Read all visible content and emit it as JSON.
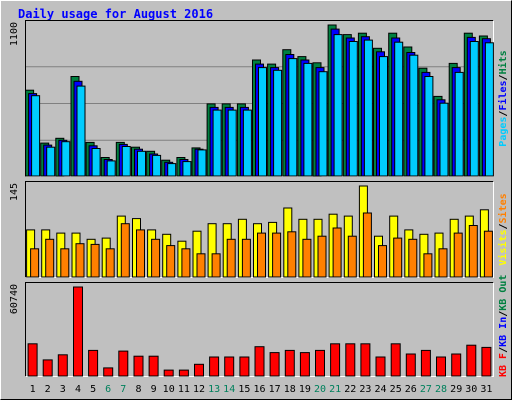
{
  "chart_data": [
    {
      "type": "bar",
      "title": "Daily usage for August 2016",
      "ylim": [
        0,
        1100
      ],
      "y_tick_label": "1100",
      "legend": [
        {
          "text": "Pages",
          "color": "#00ccff"
        },
        {
          "text": "Files",
          "color": "#0000ff"
        },
        {
          "text": "Hits",
          "color": "#008040"
        }
      ],
      "categories": [
        "1",
        "2",
        "3",
        "4",
        "5",
        "6",
        "7",
        "8",
        "9",
        "10",
        "11",
        "12",
        "13",
        "14",
        "15",
        "16",
        "17",
        "18",
        "19",
        "20",
        "21",
        "22",
        "23",
        "24",
        "25",
        "26",
        "27",
        "28",
        "29",
        "30",
        "31"
      ],
      "weekend_days": [
        "6",
        "7",
        "13",
        "14",
        "20",
        "21",
        "27",
        "28"
      ],
      "series": [
        {
          "name": "Hits",
          "color": "#008040",
          "values": [
            625,
            240,
            275,
            725,
            245,
            135,
            245,
            210,
            180,
            115,
            135,
            205,
            525,
            525,
            525,
            845,
            815,
            920,
            870,
            825,
            1100,
            1030,
            1040,
            930,
            1040,
            940,
            785,
            580,
            820,
            1040,
            1020
          ]
        },
        {
          "name": "Files",
          "color": "#0000ff",
          "values": [
            600,
            225,
            260,
            690,
            220,
            120,
            230,
            195,
            160,
            100,
            120,
            195,
            500,
            500,
            500,
            815,
            790,
            885,
            845,
            790,
            1070,
            1005,
            1015,
            905,
            1005,
            900,
            755,
            555,
            790,
            1010,
            1000
          ]
        },
        {
          "name": "Pages",
          "color": "#00ccff",
          "values": [
            585,
            210,
            250,
            655,
            200,
            110,
            215,
            180,
            150,
            90,
            105,
            190,
            480,
            480,
            480,
            790,
            770,
            855,
            820,
            760,
            1030,
            980,
            990,
            870,
            975,
            880,
            725,
            530,
            755,
            980,
            970
          ]
        }
      ]
    },
    {
      "type": "bar",
      "ylim": [
        0,
        145
      ],
      "y_tick_label": "145",
      "legend": [
        {
          "text": "Visits",
          "color": "#ffff00"
        },
        {
          "text": "Sites",
          "color": "#ff8000"
        }
      ],
      "series": [
        {
          "name": "Visits",
          "color": "#ffff00",
          "values": [
            75,
            75,
            70,
            70,
            60,
            62,
            97,
            93,
            75,
            68,
            57,
            73,
            85,
            85,
            92,
            85,
            87,
            110,
            92,
            92,
            100,
            97,
            145,
            65,
            97,
            75,
            68,
            70,
            92,
            97,
            107
          ]
        },
        {
          "name": "Sites",
          "color": "#ff8000",
          "values": [
            45,
            60,
            45,
            53,
            52,
            45,
            85,
            75,
            60,
            50,
            45,
            37,
            37,
            60,
            60,
            70,
            70,
            72,
            60,
            65,
            78,
            65,
            102,
            50,
            62,
            60,
            37,
            45,
            70,
            82,
            73
          ]
        }
      ]
    },
    {
      "type": "bar",
      "ylim": [
        0,
        60740
      ],
      "y_tick_label": "60740",
      "legend": [
        {
          "text": "KB F",
          "color": "#ff0000"
        },
        {
          "text": "KB In",
          "color": "#0000ff"
        },
        {
          "text": "KB Out",
          "color": "#008040"
        }
      ],
      "series": [
        {
          "name": "KB F",
          "color": "#ff0000",
          "values": [
            22000,
            11000,
            14500,
            60740,
            17500,
            5500,
            17000,
            13500,
            13500,
            4000,
            4000,
            8000,
            13000,
            13000,
            13000,
            20000,
            16000,
            17500,
            16000,
            17500,
            22000,
            22000,
            22000,
            13000,
            22000,
            15000,
            17500,
            13000,
            15000,
            21000,
            19500
          ]
        }
      ]
    }
  ]
}
